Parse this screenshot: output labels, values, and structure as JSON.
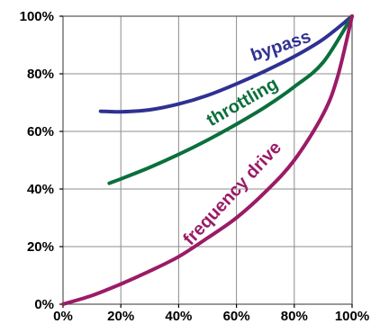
{
  "chart_data": {
    "type": "line",
    "xlim": [
      0,
      100
    ],
    "ylim": [
      0,
      100
    ],
    "grid": true,
    "legend": "curve labels placed along each line",
    "x_ticks": [
      "0%",
      "20%",
      "40%",
      "60%",
      "80%",
      "100%"
    ],
    "y_ticks": [
      "0%",
      "20%",
      "40%",
      "60%",
      "80%",
      "100%"
    ],
    "series": [
      {
        "name": "bypass",
        "color": "#2e3192",
        "x": [
          13,
          20,
          30,
          40,
          50,
          60,
          70,
          80,
          90,
          100
        ],
        "y": [
          67,
          66.8,
          67.5,
          69.5,
          72.5,
          76.5,
          81,
          86,
          92,
          100
        ]
      },
      {
        "name": "throttling",
        "color": "#0b6f3c",
        "x": [
          16,
          20,
          30,
          40,
          50,
          60,
          70,
          80,
          90,
          100
        ],
        "y": [
          42,
          43.5,
          47.5,
          52,
          57,
          62.5,
          68.5,
          75.5,
          84,
          100
        ]
      },
      {
        "name": "frequency drive",
        "color": "#9b1b66",
        "x": [
          0,
          10,
          20,
          30,
          40,
          50,
          60,
          70,
          80,
          90,
          95,
          100
        ],
        "y": [
          0,
          3,
          7,
          11.5,
          16.5,
          23,
          30,
          39,
          50,
          66,
          79,
          100
        ]
      }
    ]
  }
}
